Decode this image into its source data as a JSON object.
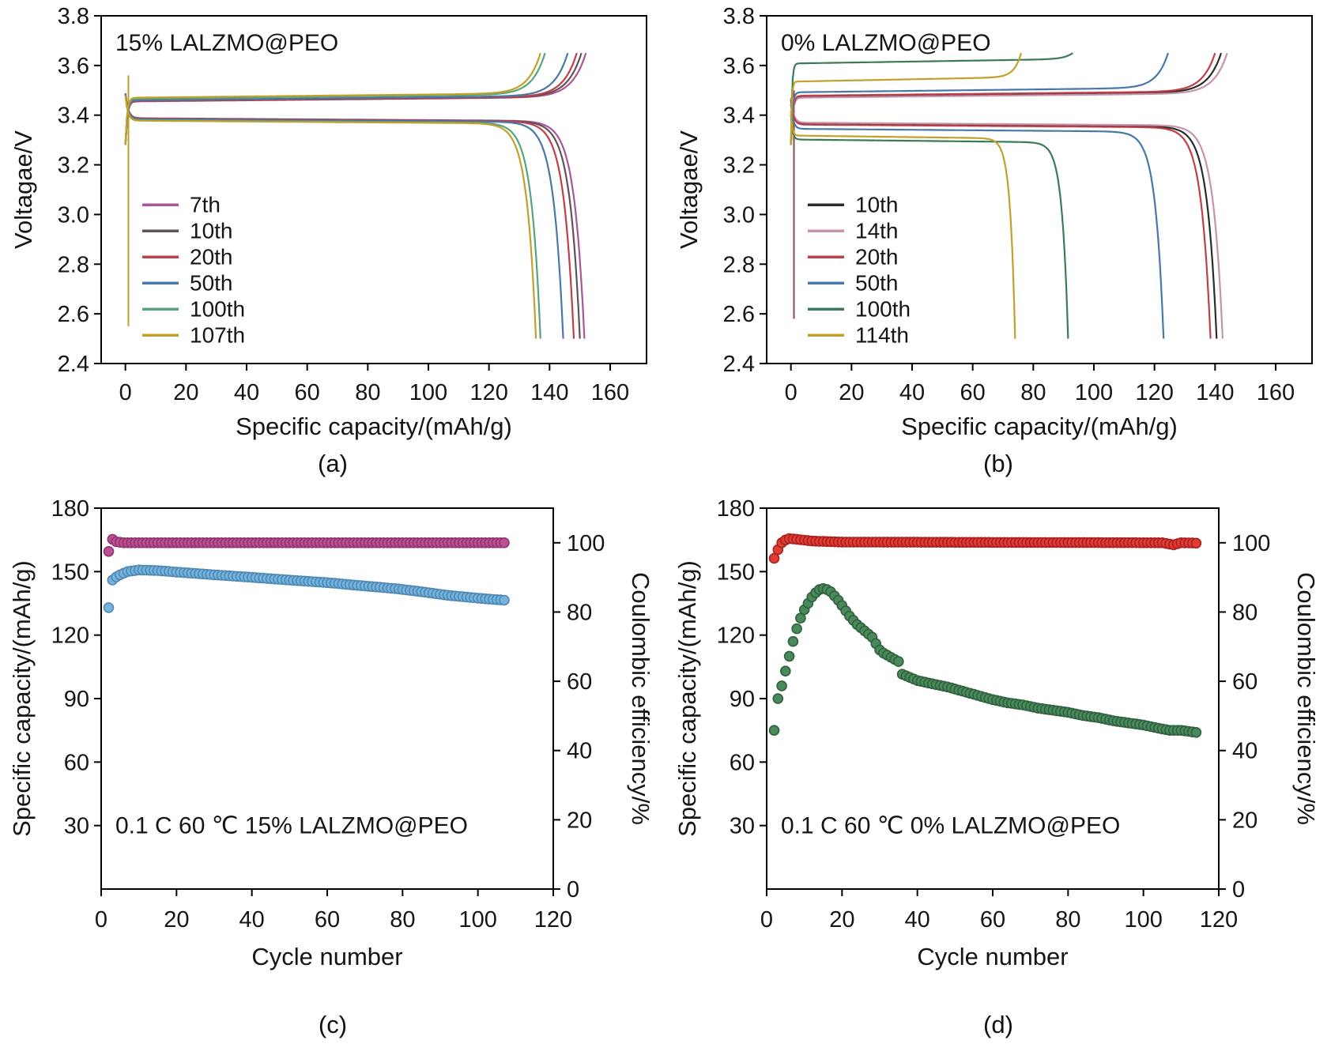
{
  "figure": {
    "captions": {
      "a": "(a)",
      "b": "(b)",
      "c": "(c)",
      "d": "(d)"
    }
  },
  "chart_data": [
    {
      "id": "a",
      "type": "line",
      "kind": "voltage-profile",
      "title": "15% LALZMO@PEO",
      "xlabel": "Specific capacity/(mAh/g)",
      "ylabel": "Voltagae/V",
      "xlim": [
        -8,
        172
      ],
      "ylim": [
        2.4,
        3.8
      ],
      "xticks": [
        [
          0,
          "0"
        ],
        [
          20,
          "20"
        ],
        [
          40,
          "40"
        ],
        [
          60,
          "60"
        ],
        [
          80,
          "80"
        ],
        [
          100,
          "100"
        ],
        [
          120,
          "120"
        ],
        [
          140,
          "140"
        ],
        [
          160,
          "160"
        ]
      ],
      "yticks": [
        [
          2.4,
          "2.4"
        ],
        [
          2.6,
          "2.6"
        ],
        [
          2.8,
          "2.8"
        ],
        [
          3.0,
          "3.0"
        ],
        [
          3.2,
          "3.2"
        ],
        [
          3.4,
          "3.4"
        ],
        [
          3.6,
          "3.6"
        ],
        [
          3.8,
          "3.8"
        ]
      ],
      "cutoff_upper": 3.65,
      "cutoff_lower": 2.5,
      "series": [
        {
          "name": "7th",
          "color": "#a8569b",
          "charge_plateau": 3.455,
          "charge_capacity": 152,
          "discharge_plateau": 3.388,
          "discharge_capacity": 151.5
        },
        {
          "name": "10th",
          "color": "#635253",
          "charge_plateau": 3.456,
          "charge_capacity": 150.5,
          "discharge_plateau": 3.387,
          "discharge_capacity": 150
        },
        {
          "name": "20th",
          "color": "#bf3f48",
          "charge_plateau": 3.457,
          "charge_capacity": 149,
          "discharge_plateau": 3.386,
          "discharge_capacity": 148
        },
        {
          "name": "50th",
          "color": "#4878a8",
          "charge_plateau": 3.46,
          "charge_capacity": 146,
          "discharge_plateau": 3.384,
          "discharge_capacity": 144.5
        },
        {
          "name": "100th",
          "color": "#55a47c",
          "charge_plateau": 3.466,
          "charge_capacity": 138.5,
          "discharge_plateau": 3.38,
          "discharge_capacity": 137
        },
        {
          "name": "107th",
          "color": "#c3a02c",
          "charge_plateau": 3.47,
          "charge_capacity": 137,
          "discharge_plateau": 3.378,
          "discharge_capacity": 135.5
        }
      ],
      "spikes": [
        {
          "x": 1,
          "v0": 2.55,
          "v1": 3.56,
          "color": "#c3a02c"
        }
      ]
    },
    {
      "id": "b",
      "type": "line",
      "kind": "voltage-profile",
      "title": "0% LALZMO@PEO",
      "xlabel": "Specific capacity/(mAh/g)",
      "ylabel": "Voltagae/V",
      "xlim": [
        -8,
        172
      ],
      "ylim": [
        2.4,
        3.8
      ],
      "xticks": [
        [
          0,
          "0"
        ],
        [
          20,
          "20"
        ],
        [
          40,
          "40"
        ],
        [
          60,
          "60"
        ],
        [
          80,
          "80"
        ],
        [
          100,
          "100"
        ],
        [
          120,
          "120"
        ],
        [
          140,
          "140"
        ],
        [
          160,
          "160"
        ]
      ],
      "yticks": [
        [
          2.4,
          "2.4"
        ],
        [
          2.6,
          "2.6"
        ],
        [
          2.8,
          "2.8"
        ],
        [
          3.0,
          "3.0"
        ],
        [
          3.2,
          "3.2"
        ],
        [
          3.4,
          "3.4"
        ],
        [
          3.6,
          "3.6"
        ],
        [
          3.8,
          "3.8"
        ]
      ],
      "cutoff_upper": 3.65,
      "cutoff_lower": 2.5,
      "series": [
        {
          "name": "10th",
          "color": "#2b2b2b",
          "charge_plateau": 3.475,
          "charge_capacity": 142,
          "discharge_plateau": 3.365,
          "discharge_capacity": 140.5
        },
        {
          "name": "14th",
          "color": "#c793ab",
          "charge_plateau": 3.47,
          "charge_capacity": 144,
          "discharge_plateau": 3.37,
          "discharge_capacity": 142.5
        },
        {
          "name": "20th",
          "color": "#bf3f48",
          "charge_plateau": 3.478,
          "charge_capacity": 140,
          "discharge_plateau": 3.362,
          "discharge_capacity": 138.5
        },
        {
          "name": "50th",
          "color": "#4878a8",
          "charge_plateau": 3.492,
          "charge_capacity": 124.5,
          "discharge_plateau": 3.345,
          "discharge_capacity": 123
        },
        {
          "name": "100th",
          "color": "#3c7a58",
          "charge_plateau": 3.608,
          "charge_capacity": 93,
          "discharge_plateau": 3.302,
          "discharge_capacity": 91.5
        },
        {
          "name": "114th",
          "color": "#c3a02c",
          "charge_plateau": 3.535,
          "charge_capacity": 76,
          "discharge_plateau": 3.318,
          "discharge_capacity": 74
        }
      ],
      "spikes": [
        {
          "x": 1,
          "v0": 2.58,
          "v1": 3.5,
          "color": "#8a4a52"
        }
      ]
    },
    {
      "id": "c",
      "type": "scatter",
      "kind": "cycling",
      "annotation": "0.1 C 60 ℃ 15% LALZMO@PEO",
      "xlabel": "Cycle number",
      "ylabel_left": "Specific capacity/(mAh/g)",
      "ylabel_right": "Coulombic efficiency/%",
      "xlim": [
        0,
        120
      ],
      "ylim_left": [
        0,
        180
      ],
      "ylim_right": [
        0,
        110
      ],
      "xticks": [
        [
          0,
          "0"
        ],
        [
          20,
          "20"
        ],
        [
          40,
          "40"
        ],
        [
          60,
          "60"
        ],
        [
          80,
          "80"
        ],
        [
          100,
          "100"
        ],
        [
          120,
          "120"
        ]
      ],
      "yticks_left": [
        [
          30,
          "30"
        ],
        [
          60,
          "60"
        ],
        [
          90,
          "90"
        ],
        [
          120,
          "120"
        ],
        [
          150,
          "150"
        ],
        [
          180,
          "180"
        ]
      ],
      "yticks_right": [
        [
          0,
          "0"
        ],
        [
          20,
          "20"
        ],
        [
          40,
          "40"
        ],
        [
          60,
          "60"
        ],
        [
          80,
          "80"
        ],
        [
          100,
          "100"
        ]
      ],
      "series": [
        {
          "name": "Specific capacity",
          "axis": "left",
          "fill": "#74b4dc",
          "edge": "#4f88b4",
          "cycle_range": [
            2,
            107
          ],
          "anchors": [
            [
              2,
              133
            ],
            [
              3,
              146
            ],
            [
              4,
              147.5
            ],
            [
              5,
              148.5
            ],
            [
              7,
              150
            ],
            [
              10,
              150.8
            ],
            [
              15,
              150.5
            ],
            [
              20,
              149.8
            ],
            [
              30,
              148.5
            ],
            [
              40,
              147.3
            ],
            [
              50,
              146
            ],
            [
              60,
              144.8
            ],
            [
              70,
              143.2
            ],
            [
              78,
              142
            ],
            [
              85,
              140.5
            ],
            [
              92,
              138.8
            ],
            [
              98,
              137.8
            ],
            [
              103,
              137
            ],
            [
              107,
              136.5
            ]
          ]
        },
        {
          "name": "Coulombic efficiency",
          "axis": "right",
          "fill": "#bb4f92",
          "edge": "#8f3570",
          "cycle_range": [
            2,
            107
          ],
          "anchors": [
            [
              2,
              97.5
            ],
            [
              3,
              101
            ],
            [
              4,
              100.3
            ],
            [
              6,
              100
            ],
            [
              107,
              100
            ]
          ]
        }
      ]
    },
    {
      "id": "d",
      "type": "scatter",
      "kind": "cycling",
      "annotation": "0.1 C 60 ℃ 0% LALZMO@PEO",
      "xlabel": "Cycle number",
      "ylabel_left": "Specific capacity/(mAh/g)",
      "ylabel_right": "Coulombic efficiency/%",
      "xlim": [
        0,
        120
      ],
      "ylim_left": [
        0,
        180
      ],
      "ylim_right": [
        0,
        110
      ],
      "xticks": [
        [
          0,
          "0"
        ],
        [
          20,
          "20"
        ],
        [
          40,
          "40"
        ],
        [
          60,
          "60"
        ],
        [
          80,
          "80"
        ],
        [
          100,
          "100"
        ],
        [
          120,
          "120"
        ]
      ],
      "yticks_left": [
        [
          30,
          "30"
        ],
        [
          60,
          "60"
        ],
        [
          90,
          "90"
        ],
        [
          120,
          "120"
        ],
        [
          150,
          "150"
        ],
        [
          180,
          "180"
        ]
      ],
      "yticks_right": [
        [
          0,
          "0"
        ],
        [
          20,
          "20"
        ],
        [
          40,
          "40"
        ],
        [
          60,
          "60"
        ],
        [
          80,
          "80"
        ],
        [
          100,
          "100"
        ]
      ],
      "series": [
        {
          "name": "Specific capacity",
          "axis": "left",
          "fill": "#4a8a5a",
          "edge": "#2f6040",
          "cycle_range": [
            2,
            114
          ],
          "anchors": [
            [
              2,
              75
            ],
            [
              3,
              90
            ],
            [
              4,
              96
            ],
            [
              5,
              103
            ],
            [
              6,
              110
            ],
            [
              7,
              117
            ],
            [
              8,
              123
            ],
            [
              9,
              128
            ],
            [
              10,
              132
            ],
            [
              11,
              135
            ],
            [
              12,
              138
            ],
            [
              13,
              140
            ],
            [
              14,
              141.5
            ],
            [
              15,
              142
            ],
            [
              16,
              141.5
            ],
            [
              17,
              140.5
            ],
            [
              18,
              138.5
            ],
            [
              19,
              136.5
            ],
            [
              20,
              134
            ],
            [
              22,
              129
            ],
            [
              24,
              125
            ],
            [
              26,
              122
            ],
            [
              28,
              119
            ],
            [
              30,
              113
            ],
            [
              31,
              111.5
            ],
            [
              32,
              110.5
            ],
            [
              33,
              109.5
            ],
            [
              34,
              108.5
            ],
            [
              35,
              107.5
            ],
            [
              36,
              101.5
            ],
            [
              38,
              100
            ],
            [
              40,
              98.5
            ],
            [
              44,
              97
            ],
            [
              48,
              95.5
            ],
            [
              52,
              93.5
            ],
            [
              56,
              91.5
            ],
            [
              60,
              89.5
            ],
            [
              64,
              88
            ],
            [
              68,
              87
            ],
            [
              72,
              85.5
            ],
            [
              76,
              84.5
            ],
            [
              80,
              83.5
            ],
            [
              84,
              82
            ],
            [
              88,
              81
            ],
            [
              92,
              79.5
            ],
            [
              96,
              78.5
            ],
            [
              100,
              77.5
            ],
            [
              104,
              76
            ],
            [
              107,
              75
            ],
            [
              110,
              75
            ],
            [
              112,
              74.5
            ],
            [
              114,
              74
            ]
          ]
        },
        {
          "name": "Coulombic efficiency",
          "axis": "right",
          "fill": "#e03c34",
          "edge": "#aa1f1f",
          "cycle_range": [
            2,
            114
          ],
          "anchors": [
            [
              2,
              95.5
            ],
            [
              3,
              98
            ],
            [
              4,
              100
            ],
            [
              5,
              100.8
            ],
            [
              6,
              101.2
            ],
            [
              8,
              101
            ],
            [
              12,
              100.5
            ],
            [
              20,
              100.2
            ],
            [
              105,
              100
            ],
            [
              108,
              99.4
            ],
            [
              110,
              100
            ],
            [
              114,
              99.9
            ]
          ]
        }
      ]
    }
  ]
}
